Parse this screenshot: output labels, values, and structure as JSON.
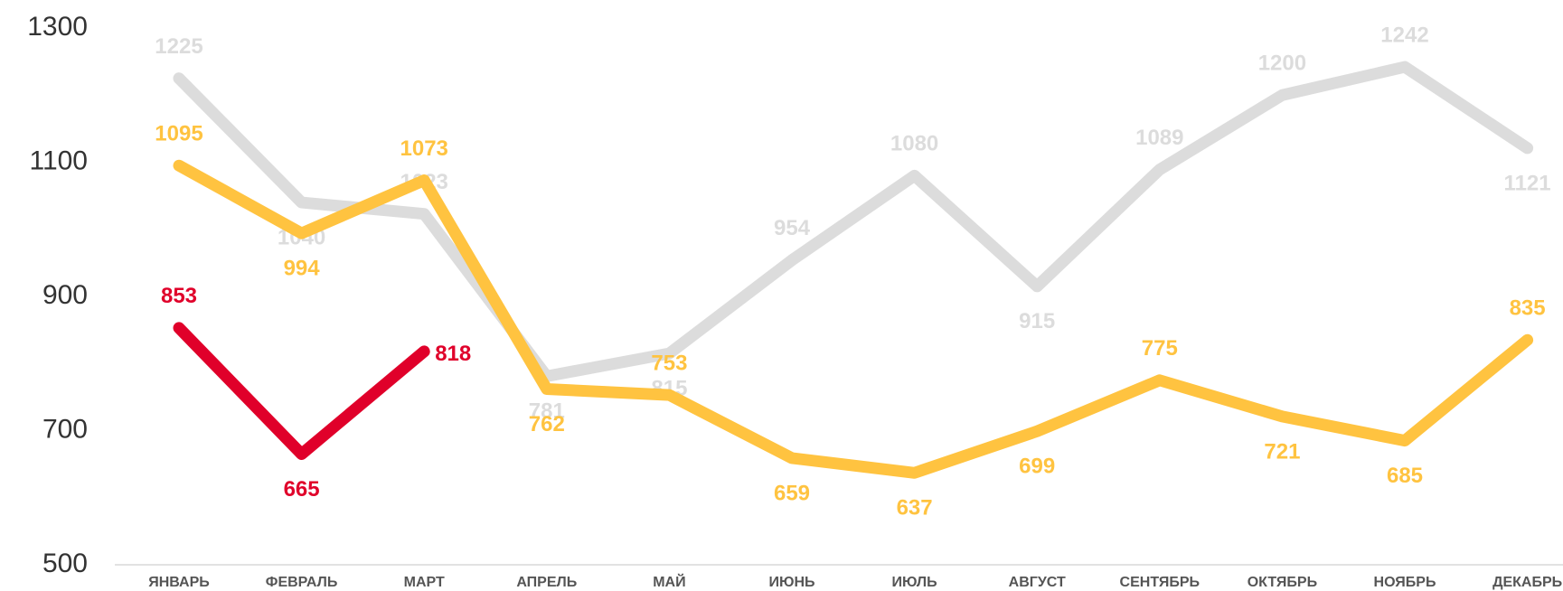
{
  "chart_data": {
    "type": "line",
    "categories": [
      "ЯНВАРЬ",
      "ФЕВРАЛЬ",
      "МАРТ",
      "АПРЕЛЬ",
      "МАЙ",
      "ИЮНЬ",
      "ИЮЛЬ",
      "АВГУСТ",
      "СЕНТЯБРЬ",
      "ОКТЯБРЬ",
      "НОЯБРЬ",
      "ДЕКАБРЬ"
    ],
    "series": [
      {
        "color": "#dcdcdc",
        "values": [
          1225,
          1040,
          1023,
          781,
          815,
          954,
          1080,
          915,
          1089,
          1200,
          1242,
          1121
        ]
      },
      {
        "color": "#ffc340",
        "values": [
          1095,
          994,
          1073,
          762,
          753,
          659,
          637,
          699,
          775,
          721,
          685,
          835
        ]
      },
      {
        "color": "#e0002a",
        "values": [
          853,
          665,
          818,
          null,
          null,
          null,
          null,
          null,
          null,
          null,
          null,
          null
        ]
      }
    ],
    "ylim": [
      500,
      1300
    ],
    "yticks": [
      500,
      700,
      900,
      1100,
      1300
    ]
  }
}
